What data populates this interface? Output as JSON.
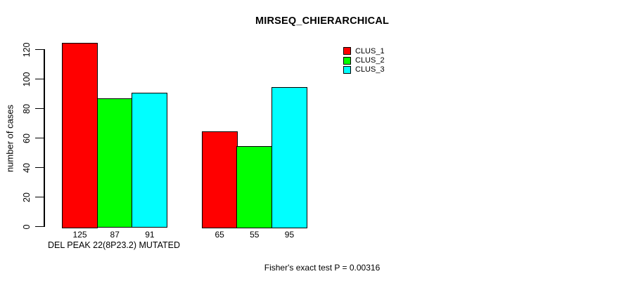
{
  "title": "MIRSEQ_CHIERARCHICAL",
  "footer": "Fisher's exact test P = 0.00316",
  "colors": {
    "background": "#ffffff",
    "text": "#000000",
    "clus_1": "#ff0000",
    "clus_2": "#00ff00",
    "clus_3": "#00ffff"
  },
  "chart_data": {
    "type": "bar",
    "title": "MIRSEQ_CHIERARCHICAL",
    "xlabel": "",
    "ylabel": "number of cases",
    "categories": [
      "DEL PEAK 22(8P23.2) MUTATED",
      ""
    ],
    "series": [
      {
        "name": "CLUS_1",
        "color": "#ff0000",
        "values": [
          125,
          65
        ]
      },
      {
        "name": "CLUS_2",
        "color": "#00ff00",
        "values": [
          87,
          55
        ]
      },
      {
        "name": "CLUS_3",
        "color": "#00ffff",
        "values": [
          91,
          95
        ]
      }
    ],
    "bar_value_labels": [
      [
        "125",
        "87",
        "91"
      ],
      [
        "65",
        "55",
        "95"
      ]
    ],
    "yticks": [
      0,
      20,
      40,
      60,
      80,
      100,
      120
    ],
    "ylim": [
      0,
      126
    ],
    "grid": false,
    "legend": {
      "position": "top-right",
      "entries": [
        "CLUS_1",
        "CLUS_2",
        "CLUS_3"
      ]
    },
    "annotation": "Fisher's exact test P = 0.00316"
  }
}
